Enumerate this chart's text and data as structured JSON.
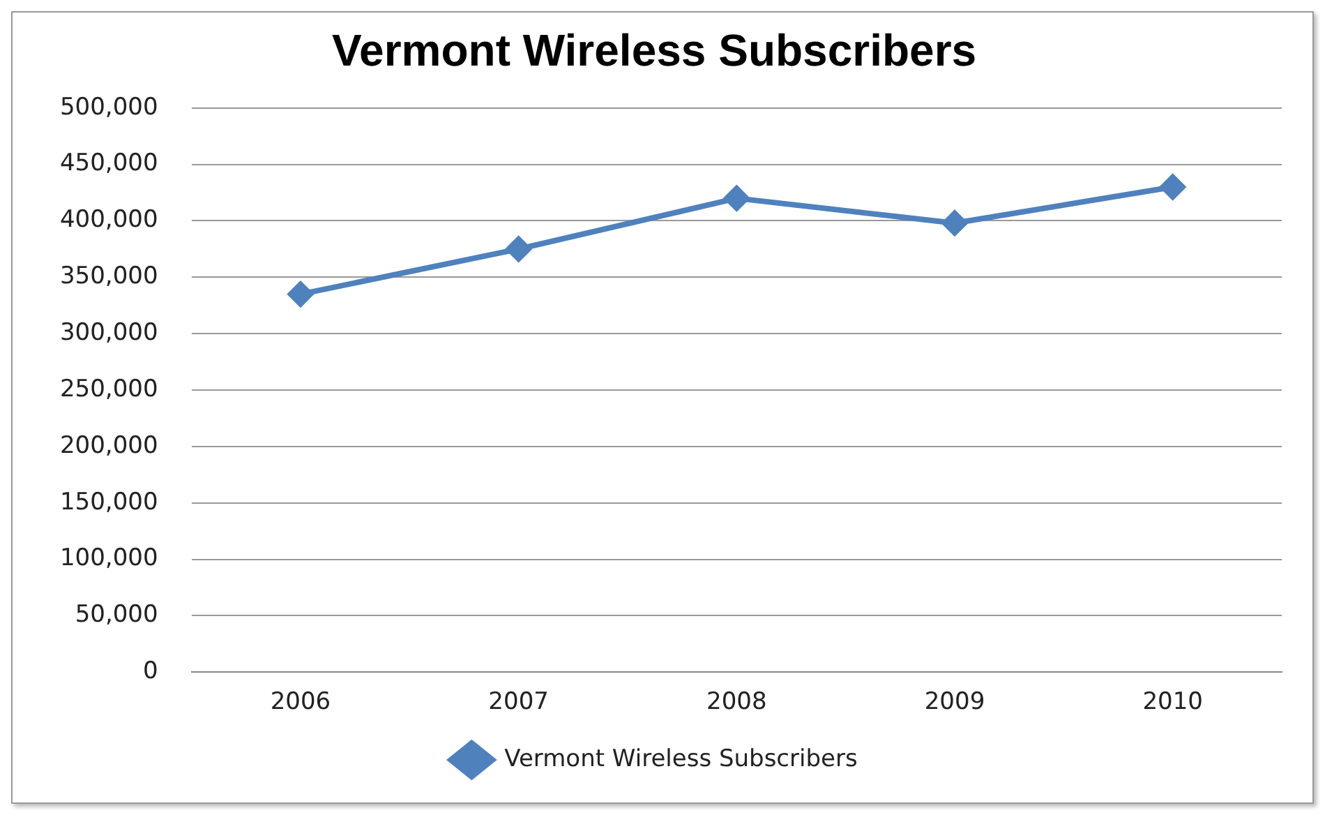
{
  "chart_data": {
    "type": "line",
    "title": "Vermont Wireless Subscribers",
    "categories": [
      "2006",
      "2007",
      "2008",
      "2009",
      "2010"
    ],
    "series": [
      {
        "name": "Vermont Wireless Subscribers",
        "color": "#4f81bd",
        "values": [
          335000,
          375000,
          420000,
          398000,
          430000
        ]
      }
    ],
    "ylim": [
      0,
      500000
    ],
    "yticks": [
      0,
      {
        "value": 50000,
        "label": "50,000"
      },
      {
        "value": 100000,
        "label": "100,000"
      },
      {
        "value": 150000,
        "label": "150,000"
      },
      {
        "value": 200000,
        "label": "200,000"
      },
      {
        "value": 250000,
        "label": "250,000"
      },
      {
        "value": 300000,
        "label": "300,000"
      },
      {
        "value": 350000,
        "label": "350,000"
      },
      {
        "value": 400000,
        "label": "400,000"
      },
      {
        "value": 450000,
        "label": "450,000"
      },
      {
        "value": 500000,
        "label": "500,000"
      }
    ],
    "grid": "y",
    "legend": "bottom",
    "marker": "diamond",
    "line_style": "solid"
  }
}
